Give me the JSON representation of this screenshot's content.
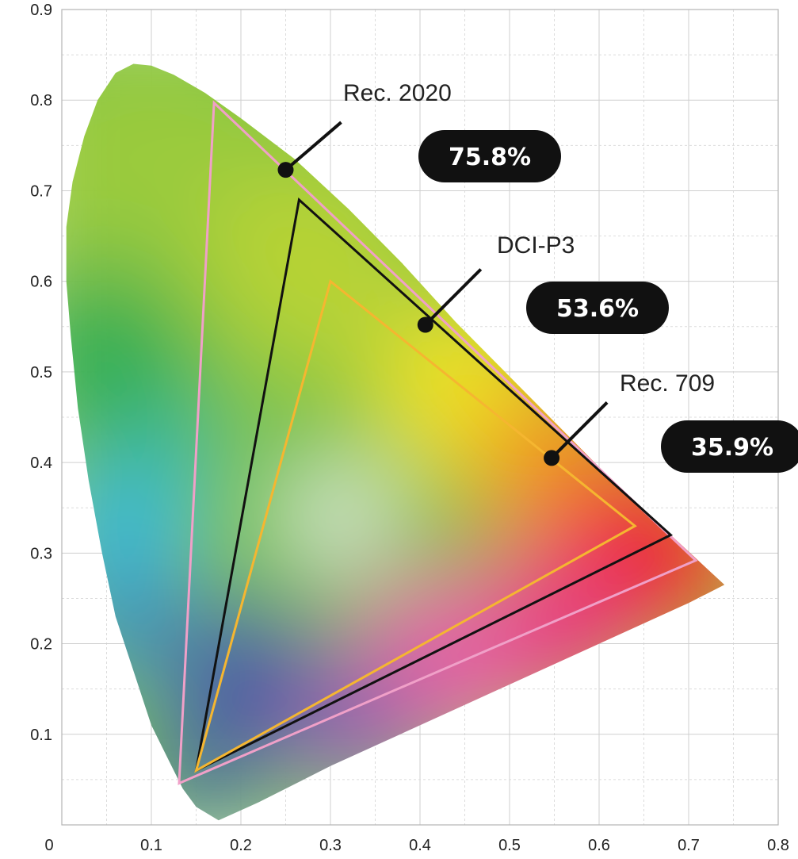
{
  "chart_data": {
    "type": "scatter",
    "title": "",
    "xlabel": "",
    "ylabel": "",
    "xlim": [
      0,
      0.8
    ],
    "ylim": [
      0,
      0.9
    ],
    "x_ticks": [
      "0",
      "0.1",
      "0.2",
      "0.3",
      "0.4",
      "0.5",
      "0.6",
      "0.7",
      "0.8"
    ],
    "y_ticks": [
      "0.1",
      "0.2",
      "0.3",
      "0.4",
      "0.5",
      "0.6",
      "0.7",
      "0.8",
      "0.9"
    ],
    "grid": true,
    "locus": [
      [
        0.175,
        0.005
      ],
      [
        0.15,
        0.02
      ],
      [
        0.135,
        0.04
      ],
      [
        0.12,
        0.07
      ],
      [
        0.1,
        0.11
      ],
      [
        0.08,
        0.17
      ],
      [
        0.06,
        0.23
      ],
      [
        0.045,
        0.3
      ],
      [
        0.03,
        0.38
      ],
      [
        0.018,
        0.46
      ],
      [
        0.01,
        0.54
      ],
      [
        0.005,
        0.6
      ],
      [
        0.005,
        0.66
      ],
      [
        0.012,
        0.71
      ],
      [
        0.025,
        0.76
      ],
      [
        0.04,
        0.8
      ],
      [
        0.06,
        0.83
      ],
      [
        0.08,
        0.84
      ],
      [
        0.1,
        0.838
      ],
      [
        0.125,
        0.828
      ],
      [
        0.16,
        0.808
      ],
      [
        0.2,
        0.78
      ],
      [
        0.26,
        0.735
      ],
      [
        0.32,
        0.68
      ],
      [
        0.38,
        0.62
      ],
      [
        0.44,
        0.555
      ],
      [
        0.5,
        0.495
      ],
      [
        0.56,
        0.435
      ],
      [
        0.62,
        0.375
      ],
      [
        0.68,
        0.32
      ],
      [
        0.74,
        0.265
      ],
      [
        0.7,
        0.245
      ],
      [
        0.6,
        0.2
      ],
      [
        0.5,
        0.155
      ],
      [
        0.4,
        0.11
      ],
      [
        0.3,
        0.065
      ],
      [
        0.22,
        0.025
      ],
      [
        0.175,
        0.005
      ]
    ],
    "series": [
      {
        "name": "Rec. 2020",
        "color": "#f0a0c8",
        "percent": "75.8%",
        "points": [
          [
            0.17,
            0.797
          ],
          [
            0.708,
            0.292
          ],
          [
            0.131,
            0.046
          ]
        ],
        "marker": [
          0.25,
          0.723
        ]
      },
      {
        "name": "DCI-P3",
        "color": "#111111",
        "percent": "53.6%",
        "points": [
          [
            0.265,
            0.69
          ],
          [
            0.68,
            0.32
          ],
          [
            0.15,
            0.06
          ]
        ],
        "marker": [
          0.406,
          0.552
        ]
      },
      {
        "name": "Rec. 709",
        "color": "#f5b630",
        "percent": "35.9%",
        "points": [
          [
            0.3,
            0.6
          ],
          [
            0.64,
            0.33
          ],
          [
            0.15,
            0.06
          ]
        ],
        "marker": [
          0.547,
          0.405
        ]
      }
    ]
  }
}
